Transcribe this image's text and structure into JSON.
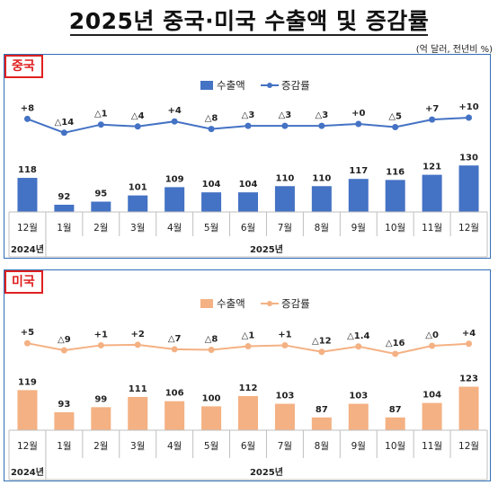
{
  "title": "2025년  중국·미국 수출액 및 증감률",
  "unit": "(억 달러, 전년비 %)",
  "chart_data": [
    {
      "type": "bar",
      "panel_label": "중국",
      "categories": [
        "12월",
        "1월",
        "2월",
        "3월",
        "4월",
        "5월",
        "6월",
        "7월",
        "8월",
        "9월",
        "10월",
        "11월",
        "12월"
      ],
      "year_labels": [
        "2024년",
        "2025년"
      ],
      "series": [
        {
          "name": "수출액",
          "type": "bar",
          "color": "#4472c4",
          "values": [
            118,
            92,
            95,
            101,
            109,
            104,
            104,
            110,
            110,
            117,
            116,
            121,
            130
          ]
        },
        {
          "name": "증감률",
          "type": "line",
          "color": "#4472c4",
          "values": [
            8,
            -14,
            -1,
            -4,
            4,
            -8,
            -3,
            -3,
            -3,
            0,
            -5,
            7,
            10
          ],
          "labels": [
            "+8",
            "△14",
            "△1",
            "△4",
            "+4",
            "△8",
            "△3",
            "△3",
            "△3",
            "+0",
            "△5",
            "+7",
            "+10"
          ]
        }
      ],
      "legend_position": "top-center",
      "grid": false
    },
    {
      "type": "bar",
      "panel_label": "미국",
      "categories": [
        "12월",
        "1월",
        "2월",
        "3월",
        "4월",
        "5월",
        "6월",
        "7월",
        "8월",
        "9월",
        "10월",
        "11월",
        "12월"
      ],
      "year_labels": [
        "2024년",
        "2025년"
      ],
      "series": [
        {
          "name": "수출액",
          "type": "bar",
          "color": "#f4b183",
          "values": [
            119,
            93,
            99,
            111,
            106,
            100,
            112,
            103,
            87,
            103,
            87,
            104,
            123
          ]
        },
        {
          "name": "증감률",
          "type": "line",
          "color": "#f4b183",
          "values": [
            5,
            -9,
            1,
            2,
            -7,
            -8,
            -1,
            1,
            -12,
            -1.4,
            -16,
            0,
            4
          ],
          "labels": [
            "+5",
            "△9",
            "+1",
            "+2",
            "△7",
            "△8",
            "△1",
            "+1",
            "△12",
            "△1.4",
            "△16",
            "△0",
            "+4"
          ]
        }
      ],
      "legend_position": "top-center",
      "grid": false
    }
  ]
}
